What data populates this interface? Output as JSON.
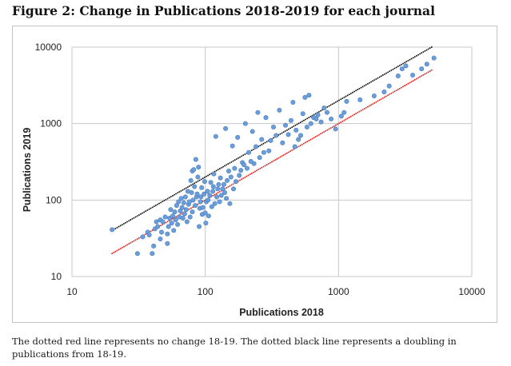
{
  "figure": {
    "title": "Figure 2: Change in Publications 2018-2019 for each journal",
    "caption": "The dotted red line represents no change 18-19. The dotted black line represents a doubling in publications from 18-19."
  },
  "colors": {
    "points": "#6a9ed8",
    "points_stroke": "#4a7cc0",
    "no_change_line": "#e0201b",
    "doubling_line": "#111111",
    "gridline": "#c8c8c8"
  },
  "chart_data": {
    "type": "scatter",
    "title": "Figure 2: Change in Publications 2018-2019 for each journal",
    "xlabel": "Publications 2018",
    "ylabel": "Publications 2019",
    "xscale": "log",
    "yscale": "log",
    "xlim": [
      10,
      10000
    ],
    "ylim": [
      10,
      10000
    ],
    "xticks": [
      "10",
      "100",
      "1000",
      "10000"
    ],
    "yticks": [
      "10",
      "100",
      "1000",
      "10000"
    ],
    "grid": true,
    "series": [
      {
        "name": "Journals",
        "style": "points",
        "points": [
          [
            20,
            41
          ],
          [
            31,
            20
          ],
          [
            34,
            33
          ],
          [
            37,
            38
          ],
          [
            38,
            35
          ],
          [
            40,
            20
          ],
          [
            41,
            25
          ],
          [
            42,
            42
          ],
          [
            43,
            52
          ],
          [
            44,
            45
          ],
          [
            46,
            55
          ],
          [
            46,
            31
          ],
          [
            47,
            38
          ],
          [
            48,
            52
          ],
          [
            50,
            60
          ],
          [
            52,
            36
          ],
          [
            52,
            27
          ],
          [
            53,
            45
          ],
          [
            54,
            58
          ],
          [
            55,
            75
          ],
          [
            56,
            50
          ],
          [
            57,
            62
          ],
          [
            58,
            40
          ],
          [
            59,
            70
          ],
          [
            60,
            55
          ],
          [
            61,
            85
          ],
          [
            62,
            48
          ],
          [
            63,
            95
          ],
          [
            64,
            60
          ],
          [
            65,
            72
          ],
          [
            66,
            105
          ],
          [
            67,
            80
          ],
          [
            68,
            58
          ],
          [
            69,
            92
          ],
          [
            70,
            66
          ],
          [
            71,
            110
          ],
          [
            72,
            75
          ],
          [
            73,
            52
          ],
          [
            74,
            130
          ],
          [
            75,
            88
          ],
          [
            76,
            95
          ],
          [
            77,
            60
          ],
          [
            78,
            180
          ],
          [
            79,
            125
          ],
          [
            80,
            70
          ],
          [
            80,
            240
          ],
          [
            81,
            100
          ],
          [
            82,
            250
          ],
          [
            83,
            150
          ],
          [
            84,
            85
          ],
          [
            85,
            340
          ],
          [
            86,
            110
          ],
          [
            87,
            120
          ],
          [
            88,
            200
          ],
          [
            89,
            270
          ],
          [
            90,
            45
          ],
          [
            91,
            78
          ],
          [
            92,
            95
          ],
          [
            93,
            110
          ],
          [
            94,
            145
          ],
          [
            95,
            65
          ],
          [
            96,
            80
          ],
          [
            98,
            120
          ],
          [
            99,
            175
          ],
          [
            100,
            68
          ],
          [
            101,
            50
          ],
          [
            102,
            95
          ],
          [
            104,
            130
          ],
          [
            105,
            100
          ],
          [
            106,
            62
          ],
          [
            108,
            115
          ],
          [
            110,
            170
          ],
          [
            112,
            82
          ],
          [
            114,
            130
          ],
          [
            115,
            150
          ],
          [
            116,
            220
          ],
          [
            118,
            90
          ],
          [
            120,
            680
          ],
          [
            122,
            110
          ],
          [
            124,
            140
          ],
          [
            126,
            160
          ],
          [
            128,
            95
          ],
          [
            130,
            195
          ],
          [
            132,
            115
          ],
          [
            135,
            140
          ],
          [
            138,
            160
          ],
          [
            140,
            125
          ],
          [
            142,
            860
          ],
          [
            144,
            105
          ],
          [
            146,
            180
          ],
          [
            150,
            240
          ],
          [
            153,
            90
          ],
          [
            156,
            200
          ],
          [
            160,
            510
          ],
          [
            163,
            140
          ],
          [
            166,
            260
          ],
          [
            170,
            175
          ],
          [
            175,
            660
          ],
          [
            180,
            210
          ],
          [
            185,
            245
          ],
          [
            190,
            310
          ],
          [
            195,
            290
          ],
          [
            200,
            1000
          ],
          [
            206,
            260
          ],
          [
            212,
            420
          ],
          [
            220,
            320
          ],
          [
            226,
            790
          ],
          [
            232,
            300
          ],
          [
            240,
            500
          ],
          [
            248,
            1400
          ],
          [
            256,
            360
          ],
          [
            265,
            620
          ],
          [
            275,
            420
          ],
          [
            285,
            1200
          ],
          [
            300,
            440
          ],
          [
            310,
            600
          ],
          [
            325,
            900
          ],
          [
            340,
            700
          ],
          [
            360,
            1500
          ],
          [
            380,
            560
          ],
          [
            400,
            950
          ],
          [
            420,
            720
          ],
          [
            440,
            1100
          ],
          [
            455,
            1900
          ],
          [
            470,
            500
          ],
          [
            480,
            820
          ],
          [
            500,
            620
          ],
          [
            520,
            700
          ],
          [
            540,
            1350
          ],
          [
            560,
            2200
          ],
          [
            580,
            900
          ],
          [
            600,
            2350
          ],
          [
            620,
            1000
          ],
          [
            650,
            1200
          ],
          [
            680,
            1150
          ],
          [
            700,
            1300
          ],
          [
            740,
            1050
          ],
          [
            780,
            1600
          ],
          [
            820,
            1400
          ],
          [
            880,
            1150
          ],
          [
            950,
            850
          ],
          [
            1050,
            1250
          ],
          [
            1100,
            1400
          ],
          [
            1150,
            1950
          ],
          [
            1450,
            2050
          ],
          [
            1850,
            2300
          ],
          [
            2200,
            2600
          ],
          [
            2400,
            3100
          ],
          [
            2800,
            4200
          ],
          [
            3000,
            5200
          ],
          [
            3200,
            5700
          ],
          [
            3600,
            4300
          ],
          [
            4200,
            5200
          ],
          [
            4600,
            6000
          ],
          [
            5200,
            7200
          ]
        ]
      },
      {
        "name": "No change 18-19",
        "style": "dotted-line",
        "points": [
          [
            20,
            20
          ],
          [
            5000,
            5000
          ]
        ]
      },
      {
        "name": "Doubling 18-19",
        "style": "dotted-line",
        "points": [
          [
            20,
            40
          ],
          [
            5000,
            10000
          ]
        ]
      }
    ]
  }
}
